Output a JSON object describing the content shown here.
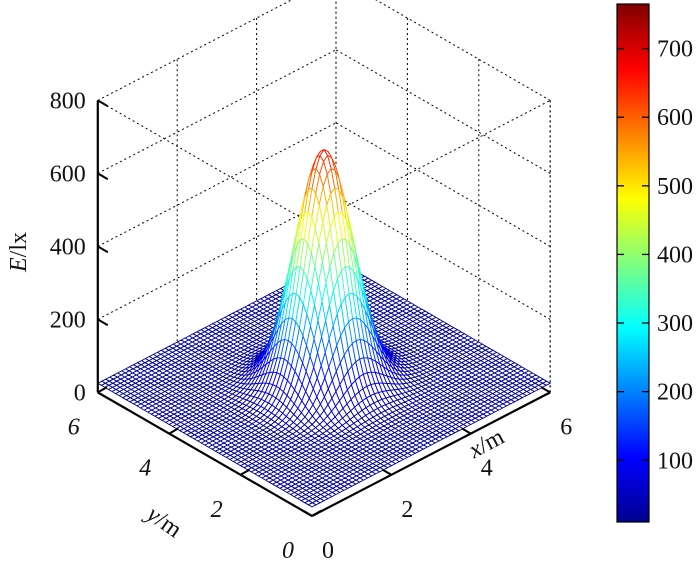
{
  "chart_data": {
    "type": "surface-3d",
    "title": "",
    "xlabel_var": "x",
    "xlabel_unit": "/m",
    "ylabel_var": "y",
    "ylabel_unit": "/m",
    "zlabel_var": "E",
    "zlabel_unit": "/lx",
    "x_range": [
      0,
      6
    ],
    "y_range": [
      0,
      6
    ],
    "z_range": [
      0,
      800
    ],
    "x_ticks": [
      "0",
      "2",
      "4",
      "6"
    ],
    "y_ticks": [
      "0",
      "2",
      "4",
      "6"
    ],
    "z_ticks": [
      "0",
      "200",
      "400",
      "600",
      "800"
    ],
    "surface": {
      "peak_center": [
        3,
        3
      ],
      "peak_value": 665,
      "base_value": 25,
      "sigma": 0.55,
      "description": "single Gaussian illuminance peak centered in the 6 m x 6 m plane"
    },
    "colorbar": {
      "colormap": "jet",
      "range": [
        10,
        765
      ],
      "ticks": [
        "100",
        "200",
        "300",
        "400",
        "500",
        "600",
        "700"
      ]
    },
    "grid": true
  }
}
